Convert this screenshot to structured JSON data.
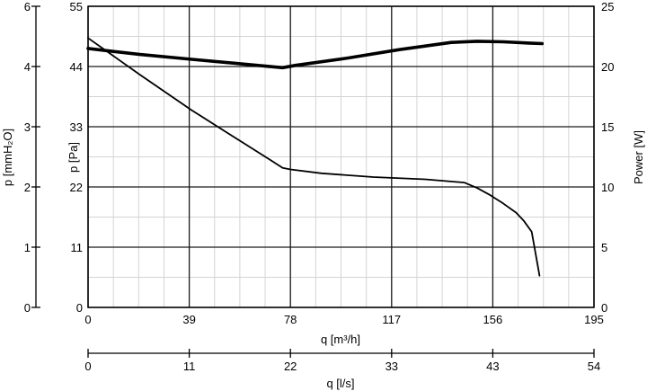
{
  "chart_data": {
    "type": "line",
    "x_axis": {
      "label": "q [m³/h]",
      "range": [
        0,
        195
      ],
      "ticks": [
        0,
        39,
        78,
        117,
        156,
        195
      ],
      "tick_labels": [
        "0",
        "39",
        "78",
        "117",
        "156",
        "195"
      ]
    },
    "x2_axis": {
      "label": "q [l/s]",
      "tick_labels": [
        "0",
        "11",
        "22",
        "33",
        "43",
        "54"
      ]
    },
    "y_axis": {
      "label": "p [Pa]",
      "range": [
        0,
        55
      ],
      "ticks": [
        0,
        11,
        22,
        33,
        44,
        55
      ],
      "tick_labels": [
        "0",
        "11",
        "22",
        "33",
        "44",
        "55"
      ]
    },
    "y2_axis": {
      "label": "p [mmH₂O]",
      "tick_labels": [
        "0",
        "1",
        "2",
        "3",
        "4",
        "6"
      ]
    },
    "y_right_axis": {
      "label": "Power [W]",
      "range": [
        0,
        25
      ],
      "ticks": [
        0,
        5,
        10,
        15,
        20,
        25
      ],
      "tick_labels": [
        "0",
        "5",
        "10",
        "15",
        "20",
        "25"
      ]
    },
    "grid": true,
    "minor_grid": {
      "x_step": 9.75,
      "y_step": 5.5
    },
    "colors": {
      "line": "#000000",
      "major_grid": "#1a1a1a",
      "minor_grid": "#d4d4d4"
    },
    "series": [
      {
        "axis": "left",
        "stroke": "thin",
        "x": [
          0,
          20,
          40,
          60,
          70,
          75,
          78,
          90,
          110,
          130,
          145,
          150,
          155,
          160,
          165,
          168,
          171,
          174
        ],
        "y": [
          49.2,
          42.5,
          36.0,
          30.0,
          27.0,
          25.5,
          25.2,
          24.5,
          23.8,
          23.4,
          22.8,
          21.8,
          20.5,
          19.0,
          17.3,
          15.8,
          13.8,
          5.8
        ]
      },
      {
        "axis": "right",
        "stroke": "thick",
        "x": [
          0,
          20,
          40,
          60,
          75,
          80,
          100,
          120,
          140,
          150,
          160,
          170,
          175
        ],
        "y": [
          21.5,
          21.0,
          20.6,
          20.2,
          19.9,
          20.1,
          20.7,
          21.4,
          22.0,
          22.1,
          22.05,
          21.95,
          21.9
        ]
      }
    ]
  }
}
